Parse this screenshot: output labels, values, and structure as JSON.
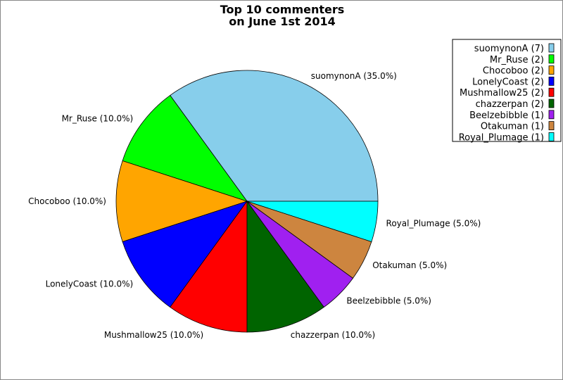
{
  "chart_data": {
    "type": "pie",
    "title": [
      "Top 10 commenters",
      "on June 1st 2014"
    ],
    "start_angle_deg": 0,
    "direction": "counterclockwise",
    "legend_placement": "top-right",
    "slices": [
      {
        "name": "suomynonA",
        "count": 7,
        "percent": 35.0,
        "color": "#87CEEB",
        "legend": "suomynonA (7)",
        "label": "suomynonA (35.0%)"
      },
      {
        "name": "Mr_Ruse",
        "count": 2,
        "percent": 10.0,
        "color": "#00FF00",
        "legend": "Mr_Ruse (2)",
        "label": "Mr_Ruse (10.0%)"
      },
      {
        "name": "Chocoboo",
        "count": 2,
        "percent": 10.0,
        "color": "#FFA500",
        "legend": "Chocoboo (2)",
        "label": "Chocoboo (10.0%)"
      },
      {
        "name": "LonelyCoast",
        "count": 2,
        "percent": 10.0,
        "color": "#0000FF",
        "legend": "LonelyCoast (2)",
        "label": "LonelyCoast (10.0%)"
      },
      {
        "name": "Mushmallow25",
        "count": 2,
        "percent": 10.0,
        "color": "#FF0000",
        "legend": "Mushmallow25 (2)",
        "label": "Mushmallow25 (10.0%)"
      },
      {
        "name": "chazzerpan",
        "count": 2,
        "percent": 10.0,
        "color": "#006400",
        "legend": "chazzerpan (2)",
        "label": "chazzerpan (10.0%)"
      },
      {
        "name": "Beelzebibble",
        "count": 1,
        "percent": 5.0,
        "color": "#A020F0",
        "legend": "Beelzebibble (1)",
        "label": "Beelzebibble (5.0%)"
      },
      {
        "name": "Otakuman",
        "count": 1,
        "percent": 5.0,
        "color": "#CD853F",
        "legend": "Otakuman (1)",
        "label": "Otakuman (5.0%)"
      },
      {
        "name": "Royal_Plumage",
        "count": 1,
        "percent": 5.0,
        "color": "#00FFFF",
        "legend": "Royal_Plumage (1)",
        "label": "Royal_Plumage (5.0%)"
      }
    ]
  }
}
